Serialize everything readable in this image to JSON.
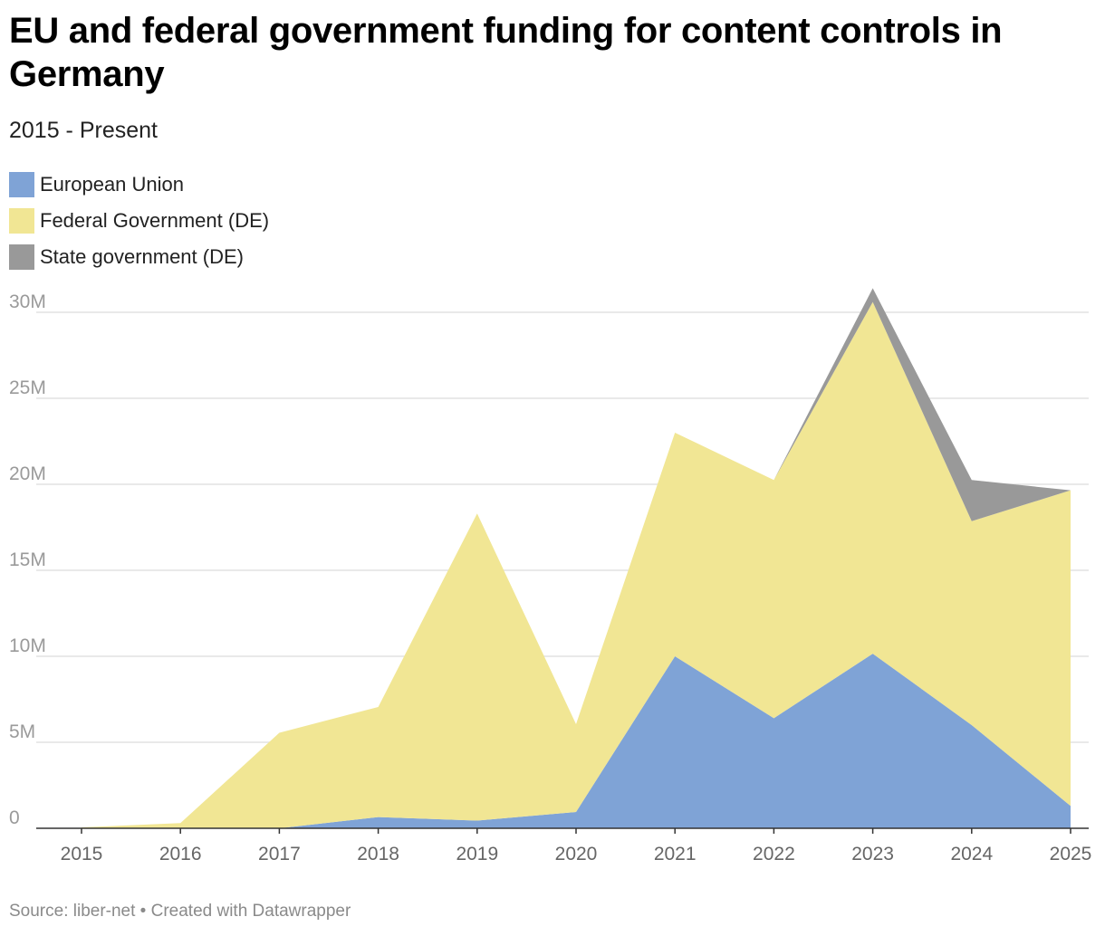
{
  "header": {
    "title": "EU and federal government funding for content controls in Germany",
    "subtitle": "2015 - Present"
  },
  "legend": [
    {
      "label": "European Union",
      "color": "#7fa3d6"
    },
    {
      "label": "Federal Government (DE)",
      "color": "#f1e694"
    },
    {
      "label": "State government (DE)",
      "color": "#999999"
    }
  ],
  "footer": {
    "source": "Source: liber-net • Created with Datawrapper"
  },
  "chart_data": {
    "type": "area",
    "stacked": true,
    "x": [
      "2015",
      "2016",
      "2017",
      "2018",
      "2019",
      "2020",
      "2021",
      "2022",
      "2023",
      "2024",
      "2025"
    ],
    "series": [
      {
        "name": "European Union",
        "color": "#7fa3d6",
        "values": [
          0,
          0,
          0,
          0.65,
          0.45,
          0.95,
          10.0,
          6.4,
          10.15,
          6.0,
          1.3
        ]
      },
      {
        "name": "Federal Government (DE)",
        "color": "#f1e694",
        "values": [
          0.05,
          0.3,
          5.55,
          6.4,
          17.85,
          5.1,
          13.0,
          13.85,
          20.45,
          11.85,
          18.35
        ]
      },
      {
        "name": "State government (DE)",
        "color": "#999999",
        "values": [
          0,
          0,
          0,
          0,
          0,
          0,
          0,
          0,
          0.8,
          2.4,
          0
        ]
      }
    ],
    "ylim": [
      0,
      30
    ],
    "yticks": [
      {
        "value": 0,
        "label": "0"
      },
      {
        "value": 5,
        "label": "5M"
      },
      {
        "value": 10,
        "label": "10M"
      },
      {
        "value": 15,
        "label": "15M"
      },
      {
        "value": 20,
        "label": "20M"
      },
      {
        "value": 25,
        "label": "25M"
      },
      {
        "value": 30,
        "label": "30M"
      }
    ],
    "grid": true,
    "legend_position": "top-left"
  }
}
